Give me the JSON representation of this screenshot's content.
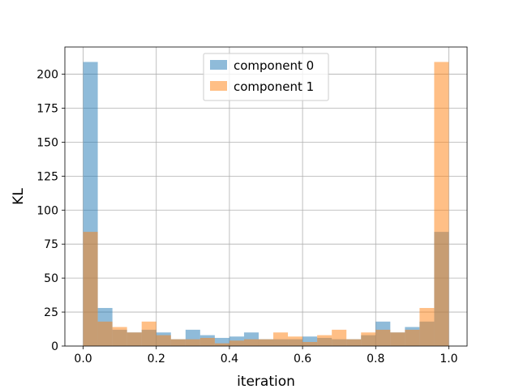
{
  "chart_data": {
    "type": "bar",
    "subtype": "overlapping-histogram",
    "xlabel": "iteration",
    "ylabel": "KL",
    "xlim": [
      -0.05,
      1.05
    ],
    "ylim": [
      0,
      220
    ],
    "xticks": [
      "0.0",
      "0.2",
      "0.4",
      "0.6",
      "0.8",
      "1.0"
    ],
    "yticks": [
      "0",
      "25",
      "50",
      "75",
      "100",
      "125",
      "150",
      "175",
      "200"
    ],
    "grid": true,
    "legend_position": "top-center",
    "bin_edges": [
      0.0,
      0.04,
      0.08,
      0.12,
      0.16,
      0.2,
      0.24,
      0.28,
      0.32,
      0.36,
      0.4,
      0.44,
      0.48,
      0.52,
      0.56,
      0.6,
      0.64,
      0.68,
      0.72,
      0.76,
      0.8,
      0.84,
      0.88,
      0.92,
      0.96,
      1.0
    ],
    "series": [
      {
        "name": "component 0",
        "color": "#1f77b4",
        "alpha": 0.5,
        "values": [
          209,
          28,
          12,
          10,
          12,
          10,
          5,
          12,
          8,
          6,
          7,
          10,
          5,
          5,
          5,
          7,
          6,
          5,
          5,
          8,
          18,
          10,
          14,
          18,
          84
        ]
      },
      {
        "name": "component 1",
        "color": "#ff7f0e",
        "alpha": 0.5,
        "values": [
          84,
          18,
          14,
          10,
          18,
          8,
          5,
          5,
          6,
          2,
          4,
          5,
          5,
          10,
          7,
          3,
          8,
          12,
          5,
          10,
          12,
          10,
          12,
          28,
          209
        ]
      }
    ]
  }
}
